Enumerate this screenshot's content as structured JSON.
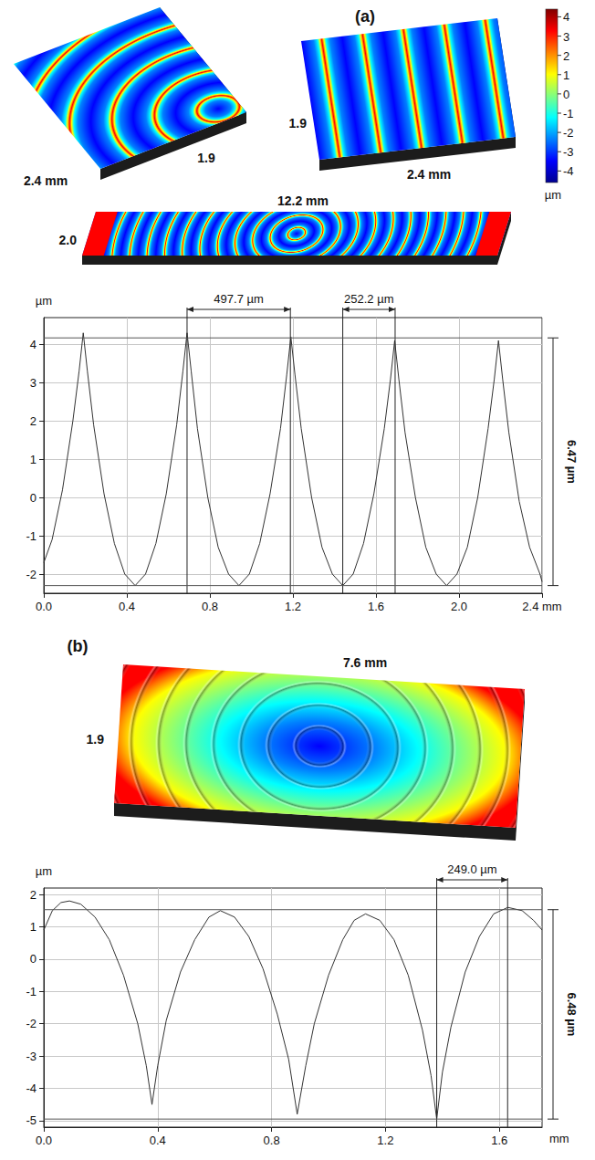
{
  "chart_data": [
    {
      "type": "line",
      "color": "#333333",
      "x": [
        0.0,
        0.04,
        0.09,
        0.14,
        0.17,
        0.19,
        0.21,
        0.24,
        0.29,
        0.34,
        0.39,
        0.44,
        0.49,
        0.54,
        0.59,
        0.64,
        0.67,
        0.69,
        0.71,
        0.74,
        0.79,
        0.84,
        0.89,
        0.94,
        0.99,
        1.04,
        1.09,
        1.14,
        1.17,
        1.19,
        1.21,
        1.24,
        1.29,
        1.34,
        1.39,
        1.44,
        1.49,
        1.54,
        1.59,
        1.64,
        1.67,
        1.69,
        1.71,
        1.74,
        1.79,
        1.84,
        1.89,
        1.94,
        1.99,
        2.04,
        2.09,
        2.14,
        2.17,
        2.19,
        2.21,
        2.24,
        2.29,
        2.34,
        2.39,
        2.4
      ],
      "values": [
        -1.7,
        -1.1,
        0.2,
        2.0,
        3.3,
        4.3,
        3.3,
        1.9,
        0.1,
        -1.2,
        -2.0,
        -2.3,
        -2.0,
        -1.2,
        0.1,
        1.9,
        3.3,
        4.3,
        3.3,
        1.8,
        0.0,
        -1.3,
        -2.0,
        -2.3,
        -2.0,
        -1.2,
        0.1,
        1.8,
        3.2,
        4.2,
        3.2,
        1.8,
        0.0,
        -1.3,
        -2.0,
        -2.3,
        -2.0,
        -1.2,
        0.1,
        1.8,
        3.1,
        4.1,
        3.1,
        1.7,
        0.0,
        -1.3,
        -2.0,
        -2.3,
        -2.0,
        -1.3,
        0.0,
        1.8,
        3.1,
        4.1,
        3.1,
        1.7,
        -0.1,
        -1.3,
        -2.0,
        -2.2
      ],
      "xlim": [
        0,
        2.4
      ],
      "ylim": [
        -2.5,
        4.7
      ],
      "xticks": [
        {
          "value": 0,
          "label": "0.0"
        },
        0.4,
        0.8,
        1.2,
        1.6,
        {
          "value": 2,
          "label": "2.0"
        },
        {
          "value": 2.4,
          "label": "2.4 mm"
        }
      ],
      "yticks": [
        -2,
        -1,
        0,
        1,
        2,
        3,
        4
      ],
      "ylabel": "µm",
      "grid": true,
      "measurements": [
        {
          "label": "497.7 µm",
          "from": 0.69,
          "to": 1.1877
        },
        {
          "label": "252.2 µm",
          "from": 1.44,
          "to": 1.6922
        }
      ],
      "height_range": {
        "label": "6.47 µm",
        "from": -2.3,
        "to": 4.17
      }
    },
    {
      "type": "line",
      "color": "#333333",
      "x": [
        0.0,
        0.03,
        0.06,
        0.09,
        0.13,
        0.18,
        0.23,
        0.28,
        0.33,
        0.36,
        0.38,
        0.4,
        0.43,
        0.48,
        0.53,
        0.58,
        0.62,
        0.67,
        0.72,
        0.77,
        0.82,
        0.86,
        0.89,
        0.92,
        0.95,
        1.0,
        1.05,
        1.09,
        1.13,
        1.18,
        1.23,
        1.28,
        1.33,
        1.36,
        1.38,
        1.4,
        1.43,
        1.48,
        1.53,
        1.58,
        1.63,
        1.68,
        1.72,
        1.75
      ],
      "values": [
        0.9,
        1.5,
        1.75,
        1.8,
        1.7,
        1.3,
        0.6,
        -0.5,
        -2.0,
        -3.3,
        -4.5,
        -3.3,
        -1.9,
        -0.4,
        0.6,
        1.3,
        1.5,
        1.3,
        0.7,
        -0.3,
        -1.7,
        -3.1,
        -4.8,
        -3.3,
        -2.0,
        -0.5,
        0.6,
        1.2,
        1.4,
        1.2,
        0.6,
        -0.5,
        -2.2,
        -3.6,
        -4.95,
        -3.5,
        -2.1,
        -0.4,
        0.7,
        1.4,
        1.6,
        1.5,
        1.2,
        0.9
      ],
      "xlim": [
        0,
        1.75
      ],
      "ylim": [
        -5.2,
        2.2
      ],
      "xticks": [
        {
          "value": 0,
          "label": "0.0"
        },
        0.4,
        0.8,
        1.2,
        1.6
      ],
      "yticks": [
        -5,
        -4,
        -3,
        -2,
        -1,
        0,
        1,
        2
      ],
      "xlabel": "mm",
      "ylabel": "µm",
      "grid": true,
      "measurements": [
        {
          "label": "249.0 µm",
          "from": 1.38,
          "to": 1.629
        }
      ],
      "height_range": {
        "label": "6.48 µm",
        "from": -4.95,
        "to": 1.53
      }
    }
  ],
  "panels": [
    {
      "label": "(a)",
      "surfaces": [
        {
          "length": "2.4 mm",
          "width": "1.9"
        },
        {
          "length": "2.4 mm",
          "width": "1.9"
        },
        {
          "length": "12.2 mm",
          "width": "2.0"
        }
      ],
      "colorbar": {
        "label": "µm",
        "range": [
          -4.6,
          4.4
        ],
        "ticks": [
          4,
          3,
          2,
          1,
          0,
          -1,
          -2,
          -3,
          -4
        ],
        "colors": [
          "#00008f",
          "#0000ff",
          "#0080ff",
          "#00ffff",
          "#80ff80",
          "#ffff00",
          "#ff8000",
          "#ff0000",
          "#800000"
        ]
      }
    },
    {
      "label": "(b)",
      "surfaces": [
        {
          "length": "7.6 mm",
          "width": "1.9"
        }
      ]
    }
  ]
}
